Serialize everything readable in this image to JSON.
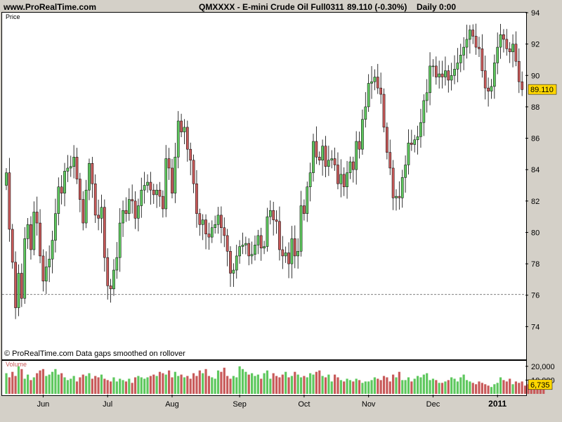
{
  "header": {
    "site": "www.ProRealTime.com",
    "instrument": "QMXXXX - E-mini Crude Oil Full0311",
    "quote": "89.110 (-0.30%)",
    "period": "Daily  0:00"
  },
  "price_panel": {
    "label": "Price",
    "footer": "© ProRealTime.com  Data gaps smoothed on rollover",
    "last_price_badge": "89.110"
  },
  "volume_panel": {
    "label": "Volume",
    "last_volume_badge": "6,735"
  },
  "colors": {
    "up": "#5ec85e",
    "down": "#c85a5a",
    "badge": "#ffd700",
    "background": "#d4d0c8",
    "hline": "#808080"
  },
  "chart_data": [
    {
      "type": "candlestick",
      "title": "QMXXXX - E-mini Crude Oil Full0311",
      "ylabel": "Price",
      "ylim": [
        72,
        94
      ],
      "yticks": [
        74,
        76,
        78,
        80,
        82,
        84,
        86,
        88,
        90,
        92,
        94
      ],
      "x_tick_labels": [
        {
          "label": "Jun",
          "index": 12
        },
        {
          "label": "Jul",
          "index": 33
        },
        {
          "label": "Aug",
          "index": 54
        },
        {
          "label": "Sep",
          "index": 76
        },
        {
          "label": "Oct",
          "index": 97
        },
        {
          "label": "Nov",
          "index": 118
        },
        {
          "label": "Dec",
          "index": 139
        },
        {
          "label": "2011",
          "index": 160
        }
      ],
      "horizontal_line": 76.05,
      "last_price": 89.11,
      "close": [
        83.8,
        80.2,
        78.1,
        75.2,
        77.4,
        75.8,
        79.6,
        80.5,
        78.9,
        81.3,
        80.6,
        78.5,
        76.9,
        77.8,
        78.3,
        79.5,
        81.2,
        82.9,
        82.5,
        83.9,
        84.1,
        84.2,
        84.8,
        83.4,
        82.1,
        80.6,
        82.7,
        84.4,
        83.1,
        81.1,
        80.9,
        81.6,
        78.4,
        76.6,
        76.4,
        77.6,
        78.4,
        80.6,
        81.4,
        81.2,
        82.1,
        82.0,
        80.9,
        81.7,
        82.7,
        83.0,
        83.2,
        82.7,
        82.4,
        82.7,
        82.3,
        81.5,
        84.7,
        84.1,
        82.5,
        84.8,
        87.1,
        86.4,
        86.7,
        85.3,
        84.6,
        83.1,
        81.2,
        80.5,
        80.8,
        79.9,
        79.7,
        80.3,
        80.5,
        81.1,
        80.3,
        79.8,
        78.8,
        77.4,
        77.6,
        78.5,
        79.1,
        79.2,
        79.3,
        78.5,
        78.6,
        79.2,
        79.8,
        79.0,
        79.1,
        81.0,
        81.4,
        80.8,
        80.7,
        78.9,
        78.5,
        78.7,
        78.0,
        79.6,
        78.5,
        78.8,
        81.7,
        81.2,
        82.9,
        83.8,
        85.8,
        84.8,
        84.6,
        85.5,
        84.2,
        84.6,
        84.7,
        84.3,
        83.1,
        83.7,
        82.9,
        83.8,
        84.5,
        84.0,
        85.8,
        85.3,
        87.2,
        88.0,
        89.5,
        89.6,
        89.9,
        89.2,
        88.8,
        86.7,
        85.1,
        84.1,
        82.2,
        82.3,
        82.2,
        83.5,
        84.3,
        85.7,
        85.6,
        85.9,
        86.1,
        87.0,
        88.4,
        88.9,
        90.6,
        90.6,
        89.9,
        90.1,
        89.9,
        90.3,
        89.7,
        90.0,
        90.4,
        90.8,
        91.3,
        91.8,
        92.3,
        92.9,
        92.5,
        91.8,
        91.7,
        90.3,
        89.2,
        89.0,
        89.3,
        90.8,
        91.8,
        92.6,
        92.3,
        91.7,
        91.5,
        92.0,
        90.9,
        89.6,
        89.1
      ],
      "open": [
        83.0,
        83.8,
        80.2,
        78.1,
        75.2,
        77.4,
        75.8,
        79.6,
        80.5,
        78.9,
        81.3,
        80.6,
        78.5,
        76.9,
        77.8,
        78.3,
        79.5,
        81.2,
        82.9,
        82.5,
        83.9,
        84.1,
        84.2,
        84.8,
        83.4,
        82.1,
        80.6,
        82.7,
        84.4,
        83.1,
        81.1,
        80.9,
        81.6,
        78.4,
        76.6,
        76.4,
        77.6,
        78.4,
        80.6,
        81.4,
        81.2,
        82.1,
        82.0,
        80.9,
        81.7,
        82.7,
        83.0,
        83.2,
        82.7,
        82.4,
        82.7,
        82.3,
        81.5,
        84.7,
        84.1,
        82.5,
        84.8,
        87.1,
        86.4,
        86.7,
        85.3,
        84.6,
        83.1,
        81.2,
        80.5,
        80.8,
        79.9,
        79.7,
        80.3,
        80.5,
        81.1,
        80.3,
        79.8,
        78.8,
        77.4,
        77.6,
        78.5,
        79.1,
        79.2,
        79.3,
        78.5,
        78.6,
        79.2,
        79.8,
        79.0,
        79.1,
        81.0,
        81.4,
        80.8,
        80.7,
        78.9,
        78.5,
        78.7,
        78.0,
        79.6,
        78.5,
        78.8,
        81.7,
        81.2,
        82.9,
        83.8,
        85.8,
        84.8,
        84.6,
        85.5,
        84.2,
        84.6,
        84.7,
        84.3,
        83.1,
        83.7,
        82.9,
        83.8,
        84.5,
        84.0,
        85.8,
        85.3,
        87.2,
        88.0,
        89.5,
        89.6,
        89.9,
        89.2,
        88.8,
        86.7,
        85.1,
        84.1,
        82.2,
        82.3,
        82.2,
        83.5,
        84.3,
        85.7,
        85.6,
        85.9,
        86.1,
        87.0,
        88.4,
        88.9,
        90.6,
        90.6,
        89.9,
        90.1,
        89.9,
        90.3,
        89.7,
        90.0,
        90.4,
        90.8,
        91.3,
        91.8,
        92.3,
        92.9,
        92.5,
        91.8,
        91.7,
        90.3,
        89.2,
        89.0,
        89.3,
        90.8,
        91.8,
        92.6,
        92.3,
        91.7,
        91.5,
        92.0,
        90.9,
        89.6
      ]
    },
    {
      "type": "bar",
      "title": "Volume",
      "ylim": [
        0,
        24000
      ],
      "yticks": [
        10000,
        20000
      ],
      "last_value": 6735,
      "values": [
        15000,
        12000,
        16000,
        13000,
        20000,
        18000,
        11000,
        14000,
        10000,
        12000,
        15000,
        17000,
        18000,
        13000,
        14000,
        16000,
        18000,
        14000,
        15000,
        12000,
        10000,
        11000,
        13000,
        9000,
        12000,
        14000,
        13000,
        15000,
        11000,
        13000,
        12000,
        14000,
        11000,
        10000,
        9000,
        12000,
        9000,
        11000,
        10000,
        9000,
        11000,
        8000,
        12000,
        13000,
        12000,
        11000,
        12000,
        13000,
        14000,
        13000,
        16000,
        15000,
        14000,
        17000,
        12000,
        16000,
        13000,
        14000,
        12000,
        13000,
        11000,
        15000,
        13000,
        17000,
        15000,
        18000,
        13000,
        12000,
        11000,
        17000,
        16000,
        19000,
        13000,
        11000,
        13000,
        12000,
        20000,
        18000,
        16000,
        14000,
        15000,
        13000,
        14000,
        11000,
        15000,
        17000,
        11000,
        15000,
        13000,
        12000,
        14000,
        16000,
        12000,
        13000,
        16000,
        14000,
        12000,
        13000,
        12000,
        15000,
        14000,
        16000,
        17000,
        13000,
        12000,
        14000,
        9000,
        14000,
        12000,
        10000,
        9000,
        11000,
        10000,
        9000,
        11000,
        10000,
        8000,
        9000,
        9000,
        10000,
        12000,
        11000,
        10000,
        13000,
        12000,
        9000,
        14000,
        12000,
        16000,
        10000,
        10000,
        12000,
        9000,
        11000,
        13000,
        12000,
        14000,
        15000,
        10000,
        11000,
        10000,
        8000,
        8000,
        9000,
        10000,
        12000,
        11000,
        9000,
        12000,
        14000,
        10000,
        9000,
        8000,
        7000,
        9000,
        8000,
        7000,
        6000,
        5000,
        7000,
        8000,
        12000,
        10000,
        9000,
        11000,
        7000,
        9000,
        8000,
        9000,
        6000,
        7000,
        7000,
        8000,
        6000,
        5000,
        6735
      ]
    }
  ]
}
